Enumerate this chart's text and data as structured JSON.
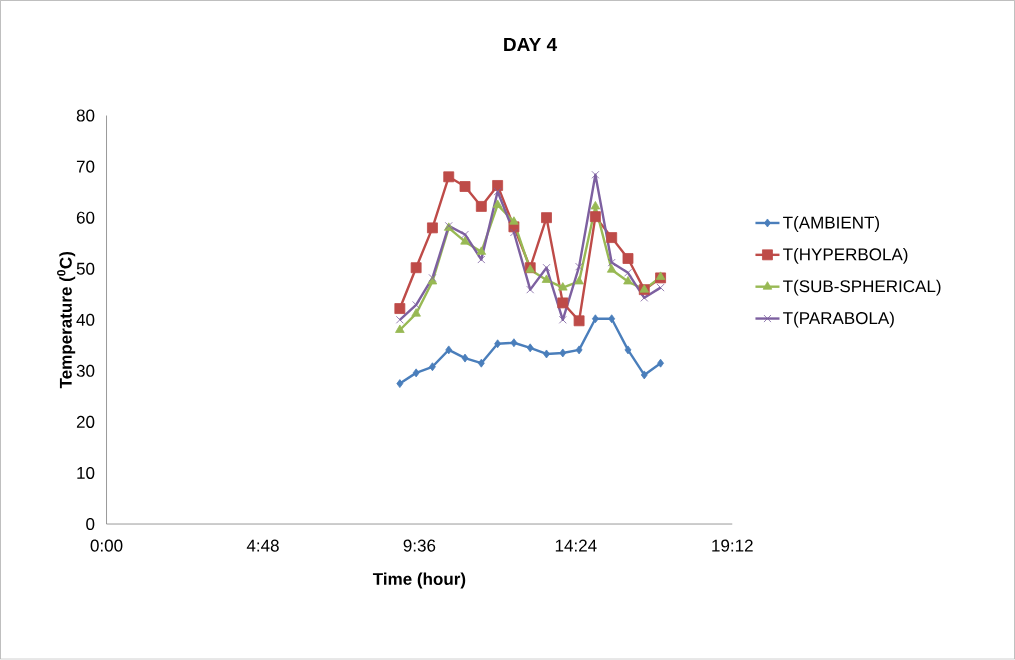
{
  "chart_data": {
    "type": "line",
    "title": "DAY 4",
    "xlabel": "Time (hour)",
    "ylabel": "Temperature ($^{0}$C)",
    "x": [
      9.0,
      9.5,
      10.0,
      10.5,
      11.0,
      11.5,
      12.0,
      12.5,
      13.0,
      13.5,
      14.0,
      14.5,
      15.0,
      15.5,
      16.0,
      16.5,
      17.0
    ],
    "series": [
      {
        "name": "T(AMBIENT)",
        "color": "#4a7ebb",
        "marker": "diamond",
        "values": [
          27.5,
          29.6,
          30.8,
          34.1,
          32.5,
          31.5,
          35.3,
          35.5,
          34.5,
          33.3,
          33.5,
          34.1,
          40.2,
          40.2,
          34.1,
          29.2,
          31.5
        ]
      },
      {
        "name": "T(HYPERBOLA)",
        "color": "#be4b48",
        "marker": "square",
        "values": [
          42.2,
          50.2,
          58.0,
          68.0,
          66.1,
          62.2,
          66.3,
          58.2,
          50.2,
          60.0,
          43.3,
          39.8,
          60.2,
          56.1,
          52.0,
          45.9,
          48.2
        ]
      },
      {
        "name": "T(SUB-SPHERICAL)",
        "color": "#98b954",
        "marker": "triangle",
        "values": [
          38.0,
          41.2,
          47.5,
          58.0,
          55.3,
          53.3,
          62.5,
          59.2,
          49.8,
          47.8,
          46.3,
          47.5,
          62.2,
          49.8,
          47.5,
          45.9,
          48.4
        ]
      },
      {
        "name": "T(PARABOLA)",
        "color": "#7d60a0",
        "marker": "cross",
        "values": [
          40.0,
          42.9,
          48.2,
          58.4,
          56.7,
          51.8,
          65.1,
          57.1,
          45.9,
          50.2,
          40.0,
          50.4,
          68.4,
          51.2,
          49.2,
          44.3,
          46.3
        ]
      }
    ],
    "xlim": [
      0,
      19.2
    ],
    "xticks": [
      {
        "value": 0,
        "label": "0:00"
      },
      {
        "value": 4.8,
        "label": "4:48"
      },
      {
        "value": 9.6,
        "label": "9:36"
      },
      {
        "value": 14.4,
        "label": "14:24"
      },
      {
        "value": 19.2,
        "label": "19:12"
      }
    ],
    "ylim": [
      0,
      80
    ],
    "yticks": [
      0,
      10,
      20,
      30,
      40,
      50,
      60,
      70,
      80
    ],
    "grid": false,
    "legend": "right"
  }
}
